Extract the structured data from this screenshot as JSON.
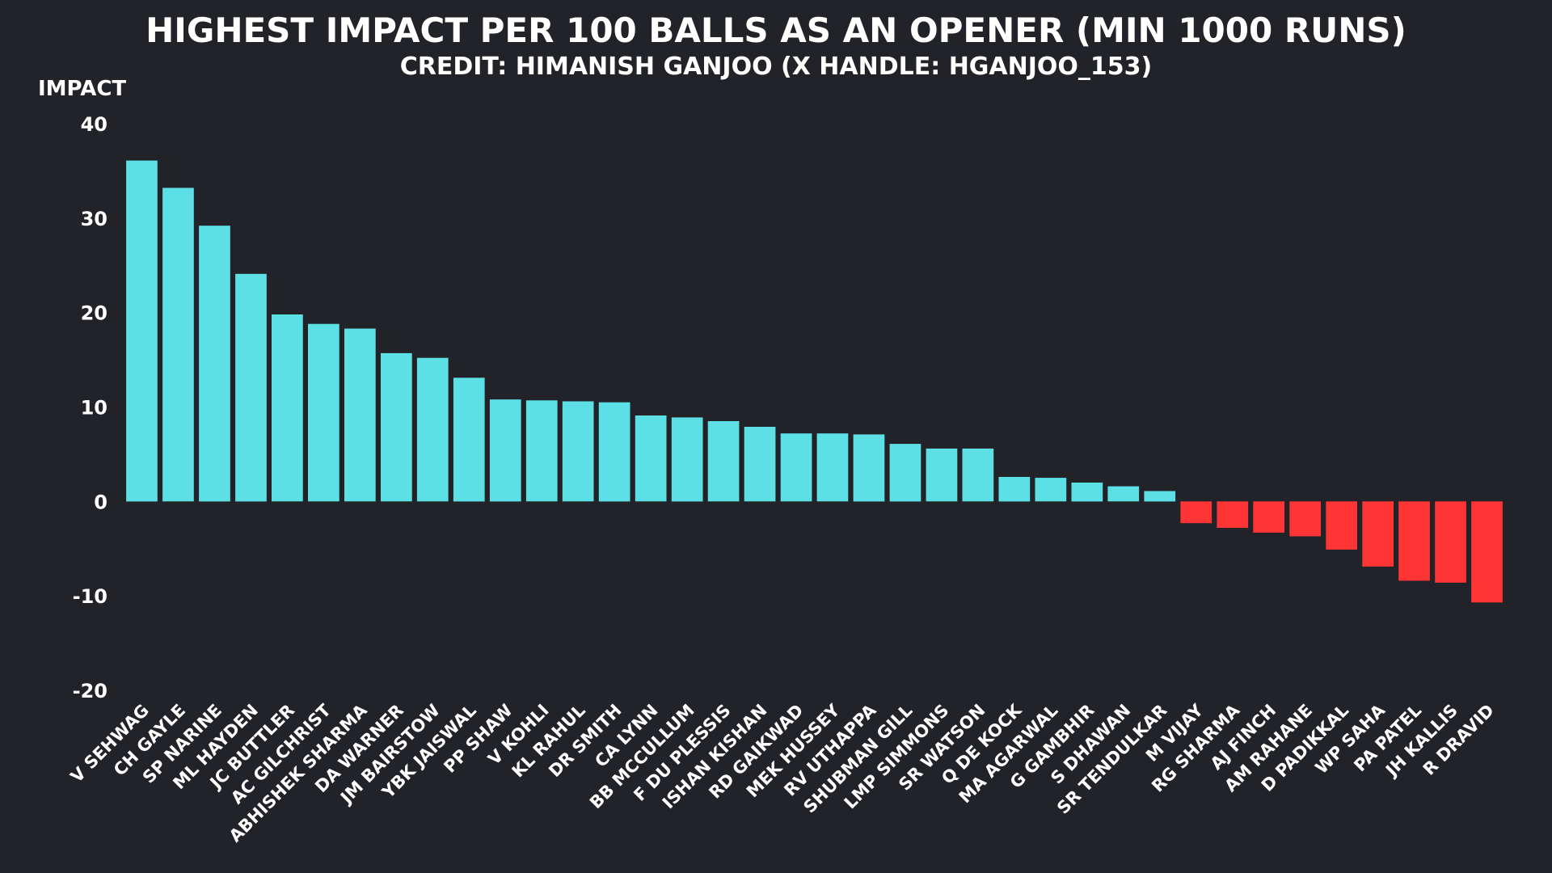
{
  "colors": {
    "background": "#222328",
    "positive": "#5ce0e6",
    "negative": "#ff3535",
    "text": "#ffffff"
  },
  "chart_data": {
    "type": "bar",
    "title": "HIGHEST IMPACT PER 100 BALLS AS AN OPENER (MIN 1000 RUNS)",
    "subtitle": "CREDIT: HIMANISH GANJOO (X HANDLE: HGANJOO_153)",
    "xlabel": "",
    "ylabel": "IMPACT",
    "ylim": [
      -20,
      40
    ],
    "yticks": [
      40,
      30,
      20,
      10,
      0,
      -10,
      -20
    ],
    "grid": false,
    "legend": "none",
    "categories": [
      "V SEHWAG",
      "CH GAYLE",
      "SP NARINE",
      "ML HAYDEN",
      "JC BUTTLER",
      "AC GILCHRIST",
      "ABHISHEK SHARMA",
      "DA WARNER",
      "JM BAIRSTOW",
      "YBK JAISWAL",
      "PP SHAW",
      "V KOHLI",
      "KL RAHUL",
      "DR SMITH",
      "CA LYNN",
      "BB MCCULLUM",
      "F DU PLESSIS",
      "ISHAN KISHAN",
      "RD GAIKWAD",
      "MEK HUSSEY",
      "RV UTHAPPA",
      "SHUBMAN GILL",
      "LMP SIMMONS",
      "SR WATSON",
      "Q DE KOCK",
      "MA AGARWAL",
      "G GAMBHIR",
      "S DHAWAN",
      "SR TENDULKAR",
      "M VIJAY",
      "RG SHARMA",
      "AJ FINCH",
      "AM RAHANE",
      "D PADIKKAL",
      "WP SAHA",
      "PA PATEL",
      "JH KALLIS",
      "R DRAVID"
    ],
    "values": [
      36.1,
      33.2,
      29.2,
      24.1,
      19.8,
      18.8,
      18.3,
      15.7,
      15.2,
      13.1,
      10.8,
      10.7,
      10.6,
      10.5,
      9.1,
      8.9,
      8.5,
      7.9,
      7.2,
      7.2,
      7.1,
      6.1,
      5.6,
      5.6,
      2.6,
      2.5,
      2.0,
      1.6,
      1.1,
      -2.3,
      -2.8,
      -3.3,
      -3.7,
      -5.1,
      -6.9,
      -8.4,
      -8.6,
      -10.7
    ]
  }
}
